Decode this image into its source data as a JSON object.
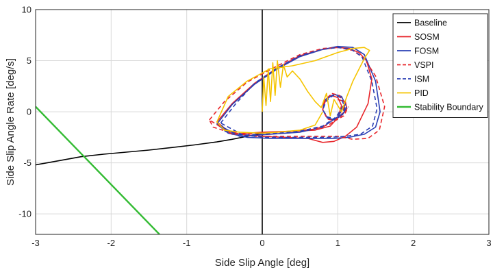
{
  "chart_data": {
    "type": "line",
    "xlabel": "Side Slip Angle [deg]",
    "ylabel": "Side Slip Angle Rate [deg/s]",
    "xlim": [
      -3,
      3
    ],
    "ylim": [
      -12,
      10
    ],
    "xticks": [
      -3,
      -2,
      -1,
      0,
      1,
      2,
      3
    ],
    "yticks": [
      10,
      5,
      0,
      -5,
      -10
    ],
    "grid": true,
    "legend_position": "top-right",
    "series": [
      {
        "name": "Baseline",
        "color": "#000000",
        "dash": "solid",
        "x": [
          -3.0,
          -2.7,
          -2.4,
          -2.1,
          -1.8,
          -1.5,
          -1.2,
          -0.9,
          -0.6,
          -0.4,
          -0.2,
          0.0
        ],
        "y": [
          -5.2,
          -4.8,
          -4.4,
          -4.15,
          -3.95,
          -3.75,
          -3.5,
          -3.25,
          -2.95,
          -2.7,
          -2.4,
          -2.1
        ]
      },
      {
        "name": "Baseline",
        "color": "#000000",
        "dash": "solid",
        "x": [
          0.0,
          0.0
        ],
        "y": [
          10.0,
          -12.0
        ]
      },
      {
        "name": "SOSM",
        "color": "#e8262b",
        "dash": "solid",
        "x": [
          -0.6,
          -0.4,
          -0.1,
          0.2,
          0.5,
          0.8,
          1.0,
          1.15,
          1.28,
          1.38,
          1.45,
          1.4,
          1.25,
          1.1,
          0.95,
          0.8,
          0.6,
          0.3,
          0.0,
          -0.3,
          -0.5,
          -0.6,
          -0.4,
          0.0,
          0.4,
          0.7,
          0.9,
          1.0,
          1.05,
          1.0,
          0.9,
          0.82,
          0.8,
          0.86,
          0.95,
          1.05,
          1.12,
          1.1,
          1.0
        ],
        "y": [
          -1.0,
          0.8,
          2.8,
          4.3,
          5.5,
          6.1,
          6.3,
          6.2,
          5.8,
          5.0,
          3.2,
          0.8,
          -1.5,
          -2.4,
          -2.9,
          -3.0,
          -2.6,
          -2.5,
          -2.4,
          -2.2,
          -1.7,
          -1.0,
          -2.2,
          -2.0,
          -1.9,
          -1.8,
          -1.4,
          -0.6,
          0.6,
          1.4,
          1.6,
          1.1,
          0.2,
          -0.6,
          -0.8,
          -0.4,
          0.3,
          1.0,
          1.2
        ]
      },
      {
        "name": "FOSM",
        "color": "#2a3fb4",
        "dash": "solid",
        "x": [
          -0.6,
          -0.4,
          -0.1,
          0.2,
          0.5,
          0.8,
          1.0,
          1.2,
          1.35,
          1.5,
          1.56,
          1.5,
          1.35,
          1.15,
          0.95,
          0.7,
          0.4,
          0.1,
          -0.2,
          -0.45,
          -0.6,
          -0.3,
          0.1,
          0.5,
          0.8,
          1.0,
          1.1,
          1.05,
          0.95,
          0.84,
          0.8,
          0.86,
          0.96,
          1.06,
          1.12
        ],
        "y": [
          -1.2,
          0.7,
          2.7,
          4.2,
          5.4,
          6.1,
          6.4,
          6.3,
          5.6,
          3.0,
          0.0,
          -1.5,
          -2.2,
          -2.5,
          -2.6,
          -2.6,
          -2.6,
          -2.6,
          -2.5,
          -2.1,
          -1.2,
          -2.4,
          -2.2,
          -2.0,
          -1.5,
          -0.5,
          0.7,
          1.5,
          1.7,
          1.2,
          0.2,
          -0.6,
          -0.8,
          -0.3,
          0.5
        ]
      },
      {
        "name": "VSPI",
        "color": "#e8262b",
        "dash": "dashed",
        "x": [
          -0.7,
          -0.5,
          -0.2,
          0.2,
          0.5,
          0.8,
          1.0,
          1.2,
          1.35,
          1.5,
          1.62,
          1.55,
          1.4,
          1.2,
          1.0,
          0.7,
          0.3,
          -0.1,
          -0.4,
          -0.65,
          -0.7,
          -0.4,
          0.0,
          0.4,
          0.7,
          0.9,
          1.05,
          1.1,
          1.02,
          0.92,
          0.84,
          0.8,
          0.86,
          0.96,
          1.08,
          1.14
        ],
        "y": [
          -0.8,
          1.0,
          2.9,
          4.5,
          5.6,
          6.2,
          6.3,
          6.0,
          5.2,
          3.5,
          0.5,
          -1.8,
          -2.6,
          -2.7,
          -2.4,
          -2.4,
          -2.4,
          -2.4,
          -2.1,
          -1.5,
          -0.8,
          -2.2,
          -2.1,
          -1.9,
          -1.7,
          -1.2,
          -0.3,
          0.8,
          1.6,
          1.8,
          1.2,
          0.2,
          -0.7,
          -0.9,
          -0.4,
          0.5
        ]
      },
      {
        "name": "ISM",
        "color": "#2a3fb4",
        "dash": "dashed",
        "x": [
          -0.55,
          -0.35,
          -0.1,
          0.2,
          0.5,
          0.8,
          1.0,
          1.18,
          1.32,
          1.45,
          1.52,
          1.46,
          1.3,
          1.1,
          0.9,
          0.65,
          0.35,
          0.05,
          -0.25,
          -0.5,
          -0.55,
          -0.25,
          0.15,
          0.5,
          0.8,
          0.98,
          1.08,
          1.04,
          0.94,
          0.85,
          0.8,
          0.86,
          0.96,
          1.06,
          1.1
        ],
        "y": [
          -1.1,
          0.8,
          2.8,
          4.3,
          5.5,
          6.1,
          6.3,
          6.1,
          5.4,
          3.0,
          0.3,
          -1.4,
          -2.2,
          -2.4,
          -2.5,
          -2.5,
          -2.5,
          -2.5,
          -2.3,
          -1.9,
          -1.1,
          -2.3,
          -2.1,
          -1.9,
          -1.4,
          -0.5,
          0.7,
          1.4,
          1.6,
          1.1,
          0.2,
          -0.5,
          -0.7,
          -0.2,
          0.5
        ]
      },
      {
        "name": "PID",
        "color": "#f5c400",
        "dash": "solid",
        "x": [
          0.0,
          0.02,
          0.05,
          0.08,
          0.11,
          0.14,
          0.17,
          0.2,
          0.24,
          0.28,
          0.33,
          0.4,
          0.5,
          0.6,
          0.7,
          0.78,
          0.85,
          0.9,
          0.95,
          1.0,
          1.05,
          1.12,
          1.2,
          1.35,
          1.42,
          1.35,
          1.2,
          1.0,
          0.7,
          0.4,
          0.1,
          -0.2,
          -0.45,
          -0.6,
          -0.5,
          -0.3,
          0.0,
          0.2,
          0.5,
          0.7,
          0.8
        ],
        "y": [
          0.0,
          3.4,
          0.6,
          4.2,
          1.0,
          4.8,
          1.6,
          5.0,
          2.4,
          4.6,
          3.4,
          4.0,
          3.2,
          2.0,
          1.0,
          0.4,
          1.8,
          -0.4,
          1.2,
          0.6,
          0.0,
          1.5,
          3.0,
          5.2,
          6.0,
          6.3,
          6.2,
          5.8,
          5.0,
          4.5,
          4.2,
          3.0,
          1.5,
          -1.0,
          -1.8,
          -2.0,
          -2.1,
          -2.0,
          -1.8,
          -1.3,
          0.0
        ]
      },
      {
        "name": "Stability Boundary",
        "color": "#33bb33",
        "dash": "solid",
        "x": [
          -3.0,
          -1.36
        ],
        "y": [
          0.5,
          -12.0
        ]
      }
    ]
  }
}
